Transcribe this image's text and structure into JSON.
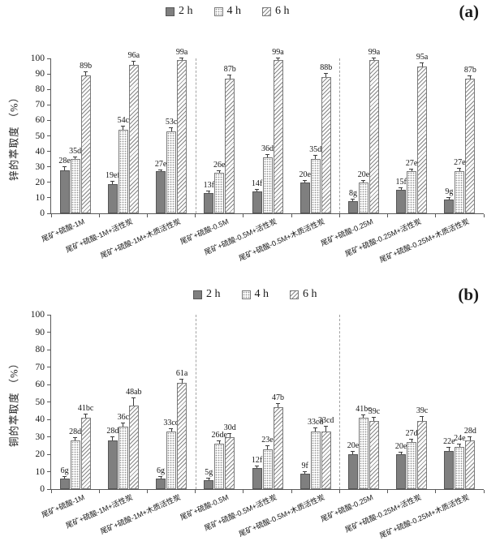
{
  "chart_data": [
    {
      "type": "bar",
      "panel_label": "(a)",
      "ylabel": "锌的萃取度 （%）",
      "ylim": [
        0,
        100
      ],
      "ytick_step": 10,
      "grid": false,
      "legend_position": "top-center",
      "categories": [
        "尾矿+硫酸-1M",
        "尾矿+硫酸-1M+活性炭",
        "尾矿+硫酸-1M+木质活性炭",
        "尾矿+硫酸-0.5M",
        "尾矿+硫酸-0.5M+活性炭",
        "尾矿+硫酸-0.5M+木质活性炭",
        "尾矿+硫酸-0.25M",
        "尾矿+硫酸-0.25M+活性炭",
        "尾矿+硫酸-0.25M+木质活性炭"
      ],
      "separators_after_category_index": [
        2,
        5
      ],
      "series": [
        {
          "name": "2 h",
          "pattern": "solid",
          "values": [
            28,
            19,
            27,
            13,
            14,
            20,
            8,
            15,
            9
          ],
          "point_labels": [
            "28e",
            "19ef",
            "27e",
            "13f",
            "14f",
            "20e",
            "8g",
            "15f",
            "9g"
          ],
          "errors": [
            2,
            1.5,
            1,
            1,
            1,
            1,
            1,
            1,
            1
          ]
        },
        {
          "name": "4 h",
          "pattern": "dots",
          "values": [
            35,
            54,
            53,
            26,
            36,
            35,
            20,
            27,
            27
          ],
          "point_labels": [
            "35d",
            "54c",
            "53c",
            "26e",
            "36d",
            "35d",
            "20e",
            "27e",
            "27e"
          ],
          "errors": [
            1,
            2,
            2,
            1,
            1.5,
            2,
            1,
            1.5,
            2
          ]
        },
        {
          "name": "6 h",
          "pattern": "hatch",
          "values": [
            89,
            96,
            99,
            87,
            99,
            88,
            99,
            95,
            87
          ],
          "point_labels": [
            "89b",
            "96a",
            "99a",
            "87b",
            "99a",
            "88b",
            "99a",
            "95a",
            "87b"
          ],
          "errors": [
            2,
            2,
            1,
            2,
            1,
            2,
            1,
            2,
            1.5
          ]
        }
      ]
    },
    {
      "type": "bar",
      "panel_label": "(b)",
      "ylabel": "铜的萃取度 （%）",
      "ylim": [
        0,
        100
      ],
      "ytick_step": 10,
      "grid": false,
      "legend_position": "top-center",
      "categories": [
        "尾矿+硫酸-1M",
        "尾矿+硫酸-1M+活性炭",
        "尾矿+硫酸-1M+木质活性炭",
        "尾矿+硫酸-0.5M",
        "尾矿+硫酸-0.5M+活性炭",
        "尾矿+硫酸-0.5M+木质活性炭",
        "尾矿+硫酸-0.25M",
        "尾矿+硫酸-0.25M+活性炭",
        "尾矿+硫酸-0.25M+木质活性炭"
      ],
      "separators_after_category_index": [
        2,
        5
      ],
      "series": [
        {
          "name": "2 h",
          "pattern": "solid",
          "values": [
            6,
            28,
            6,
            5,
            12,
            9,
            20,
            20,
            22
          ],
          "point_labels": [
            "6g",
            "28d",
            "6g",
            "5g",
            "12f",
            "9f",
            "20e",
            "20e",
            "22e"
          ],
          "errors": [
            1,
            2,
            1,
            1,
            1,
            1,
            1.5,
            1,
            1.5
          ]
        },
        {
          "name": "4 h",
          "pattern": "dots",
          "values": [
            28,
            36,
            33,
            26,
            23,
            33,
            41,
            27,
            24
          ],
          "point_labels": [
            "28d",
            "36c",
            "33cd",
            "26de",
            "23e",
            "33cd",
            "41bc",
            "27d",
            "24e"
          ],
          "errors": [
            1.5,
            1.5,
            1.5,
            1.5,
            1.5,
            2,
            1.5,
            1.5,
            1.5
          ]
        },
        {
          "name": "6 h",
          "pattern": "hatch",
          "values": [
            41,
            48,
            61,
            30,
            47,
            33,
            39,
            39,
            28
          ],
          "point_labels": [
            "41bc",
            "48ab",
            "61a",
            "30d",
            "47b",
            "33cd",
            "39c",
            "39c",
            "28d"
          ],
          "errors": [
            2,
            4,
            2,
            1.5,
            2,
            3,
            2,
            2.5,
            2
          ]
        }
      ]
    }
  ],
  "colors": {
    "bar_solid": "#7f7f7f",
    "bar_border": "#7a7a7a",
    "axis": "#595959",
    "separator": "#a3a3a3",
    "text": "#141414",
    "background": "#ffffff"
  }
}
